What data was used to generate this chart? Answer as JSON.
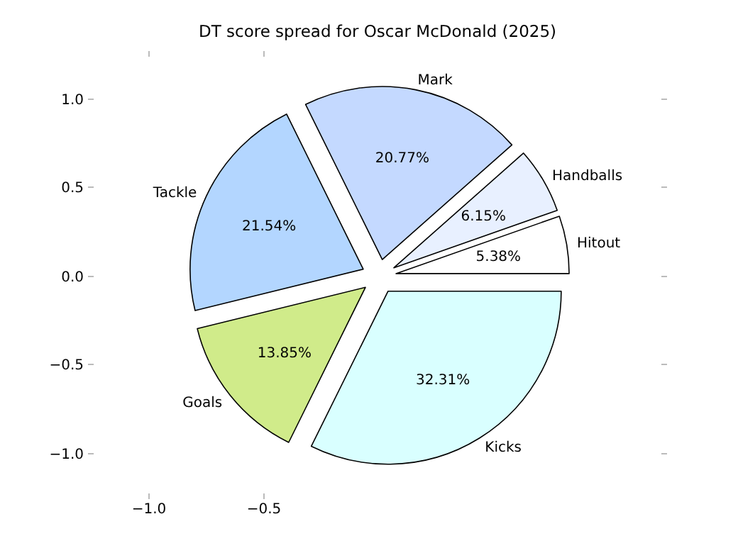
{
  "chart_data": {
    "type": "pie",
    "title": "DT score spread for Oscar McDonald (2025)",
    "categories": [
      "Hitout",
      "Handballs",
      "Mark",
      "Tackle",
      "Goals",
      "Kicks"
    ],
    "values": [
      5.38,
      6.15,
      20.77,
      21.54,
      13.85,
      32.31
    ],
    "value_labels": [
      "5.38%",
      "6.15%",
      "20.77%",
      "21.54%",
      "13.85%",
      "32.31%"
    ],
    "colors": [
      "#ffffff",
      "#e8f0ff",
      "#c4d9ff",
      "#b3d6ff",
      "#d0eb8a",
      "#d9ffff"
    ],
    "annotations": [
      "1.0",
      "0.5",
      "0.0",
      "−0.5",
      "−1.0",
      "−1.0",
      "−0.5"
    ]
  }
}
